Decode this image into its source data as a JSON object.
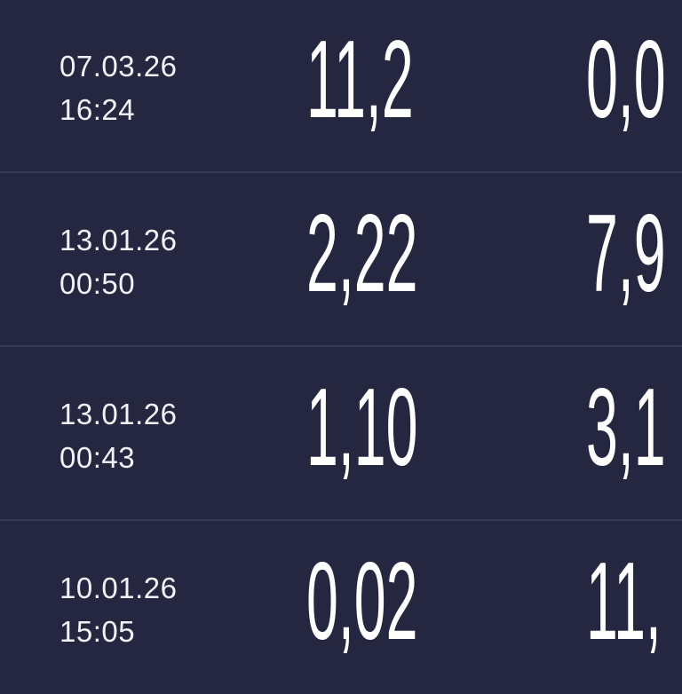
{
  "rows": [
    {
      "date": "07.03.26",
      "time": "16:24",
      "value1": "11,2",
      "value2": "0,0"
    },
    {
      "date": "13.01.26",
      "time": "00:50",
      "value1": "2,22",
      "value2": "7,9"
    },
    {
      "date": "13.01.26",
      "time": "00:43",
      "value1": "1,10",
      "value2": "3,1"
    },
    {
      "date": "10.01.26",
      "time": "15:05",
      "value1": "0,02",
      "value2": "11,"
    }
  ],
  "colors": {
    "background": "#252640",
    "divider": "#3a3c56",
    "text": "#ffffff"
  }
}
